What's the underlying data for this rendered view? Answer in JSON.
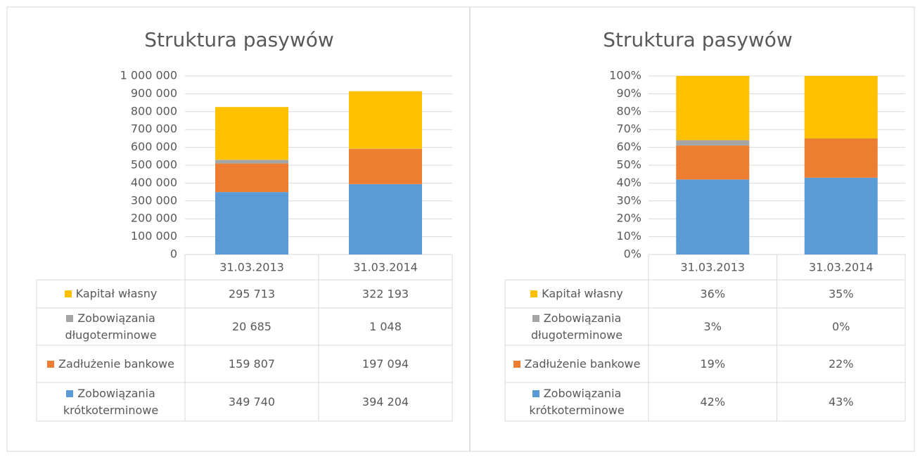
{
  "chart_data": [
    {
      "type": "stacked_bar",
      "title": "Struktura pasywów",
      "categories": [
        "31.03.2013",
        "31.03.2014"
      ],
      "series": [
        {
          "name": "Zobowiązania krótkoterminowe",
          "color": "#5b9bd5",
          "values": [
            349740,
            394204
          ],
          "value_labels": [
            "349 740",
            "394 204"
          ]
        },
        {
          "name": "Zadłużenie bankowe",
          "color": "#ed7d31",
          "values": [
            159807,
            197094
          ],
          "value_labels": [
            "159 807",
            "197 094"
          ]
        },
        {
          "name": "Zobowiązania długoterminowe",
          "color": "#a5a5a5",
          "values": [
            20685,
            1048
          ],
          "value_labels": [
            "20 685",
            "1 048"
          ]
        },
        {
          "name": "Kapitał własny",
          "color": "#ffc000",
          "values": [
            295713,
            322193
          ],
          "value_labels": [
            "295 713",
            "322 193"
          ]
        }
      ],
      "ylim": [
        0,
        1000000
      ],
      "yticks": [
        0,
        {
          "value": 100000,
          "label": "100 000"
        },
        {
          "value": 200000,
          "label": "200 000"
        },
        {
          "value": 300000,
          "label": "300 000"
        },
        {
          "value": 400000,
          "label": "400 000"
        },
        {
          "value": 500000,
          "label": "500 000"
        },
        {
          "value": 600000,
          "label": "600 000"
        },
        {
          "value": 700000,
          "label": "700 000"
        },
        {
          "value": 800000,
          "label": "800 000"
        },
        {
          "value": 900000,
          "label": "900 000"
        },
        {
          "value": 1000000,
          "label": "1 000 000"
        }
      ],
      "grid": true
    },
    {
      "type": "stacked_bar",
      "title": "Struktura pasywów",
      "categories": [
        "31.03.2013",
        "31.03.2014"
      ],
      "series": [
        {
          "name": "Zobowiązania krótkoterminowe",
          "color": "#5b9bd5",
          "values": [
            42,
            43
          ],
          "value_labels": [
            "42%",
            "43%"
          ]
        },
        {
          "name": "Zadłużenie bankowe",
          "color": "#ed7d31",
          "values": [
            19,
            22
          ],
          "value_labels": [
            "19%",
            "22%"
          ]
        },
        {
          "name": "Zobowiązania długoterminowe",
          "color": "#a5a5a5",
          "values": [
            3,
            0
          ],
          "value_labels": [
            "3%",
            "0%"
          ]
        },
        {
          "name": "Kapitał własny",
          "color": "#ffc000",
          "values": [
            36,
            35
          ],
          "value_labels": [
            "36%",
            "35%"
          ]
        }
      ],
      "ylim": [
        0,
        100
      ],
      "yticks": [
        {
          "value": 0,
          "label": "0%"
        },
        {
          "value": 10,
          "label": "10%"
        },
        {
          "value": 20,
          "label": "20%"
        },
        {
          "value": 30,
          "label": "30%"
        },
        {
          "value": 40,
          "label": "40%"
        },
        {
          "value": 50,
          "label": "50%"
        },
        {
          "value": 60,
          "label": "60%"
        },
        {
          "value": 70,
          "label": "70%"
        },
        {
          "value": 80,
          "label": "80%"
        },
        {
          "value": 90,
          "label": "90%"
        },
        {
          "value": 100,
          "label": "100%"
        }
      ],
      "grid": true
    }
  ]
}
